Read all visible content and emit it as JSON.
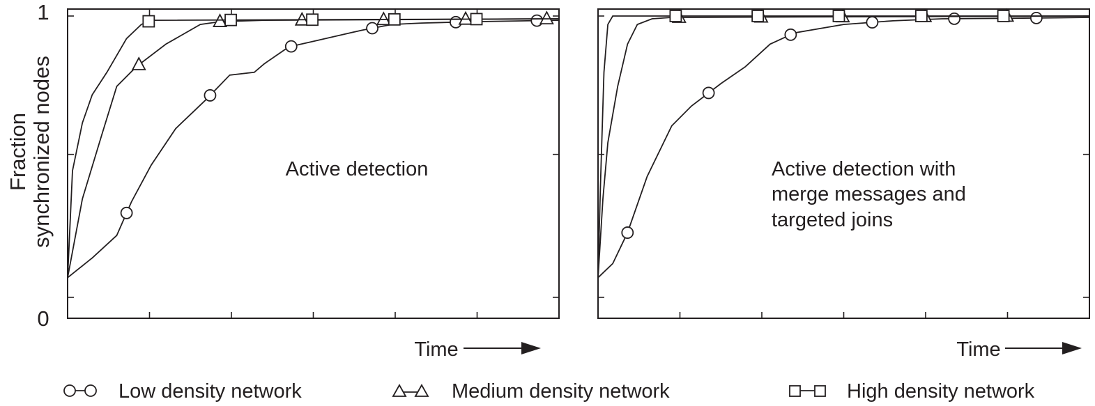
{
  "chart_data": [
    {
      "type": "line",
      "annotation": "Active detection",
      "xlabel": "Time",
      "ylabel": "Fraction synchronized nodes",
      "ylabel_lines": [
        "Fraction",
        "synchronized nodes"
      ],
      "ylim": [
        0,
        1
      ],
      "xlim": [
        0,
        1
      ],
      "y_tick_labels": [
        "0",
        "1"
      ],
      "series": [
        {
          "name": "Low density network",
          "marker": "circle",
          "x": [
            0,
            0.05,
            0.1,
            0.13,
            0.17,
            0.22,
            0.28,
            0.33,
            0.38,
            0.4,
            0.45,
            0.5,
            0.55,
            0.6,
            0.66,
            0.72,
            0.83,
            1
          ],
          "y": [
            0.07,
            0.14,
            0.22,
            0.34,
            0.47,
            0.6,
            0.7,
            0.79,
            0.8,
            0.83,
            0.89,
            0.91,
            0.93,
            0.95,
            0.97,
            0.975,
            0.98,
            0.985
          ],
          "markers_x": [
            0.12,
            0.29,
            0.455,
            0.62,
            0.79,
            0.955
          ]
        },
        {
          "name": "Medium density network",
          "marker": "triangle",
          "x": [
            0,
            0.03,
            0.07,
            0.1,
            0.14,
            0.2,
            0.27,
            0.31,
            0.4,
            1
          ],
          "y": [
            0.07,
            0.35,
            0.58,
            0.75,
            0.82,
            0.9,
            0.97,
            0.98,
            0.985,
            0.99
          ],
          "markers_x": [
            0.145,
            0.31,
            0.477,
            0.643,
            0.81,
            0.975
          ]
        },
        {
          "name": "High density network",
          "marker": "square",
          "x": [
            0,
            0.01,
            0.03,
            0.05,
            0.08,
            0.12,
            0.15,
            0.17,
            1
          ],
          "y": [
            0.07,
            0.45,
            0.62,
            0.72,
            0.8,
            0.92,
            0.97,
            0.985,
            0.99
          ],
          "markers_x": [
            0.165,
            0.332,
            0.498,
            0.665,
            0.832
          ]
        }
      ]
    },
    {
      "type": "line",
      "annotation_lines": [
        "Active detection with",
        "merge messages and",
        "targeted joins"
      ],
      "xlabel": "Time",
      "ylim": [
        0,
        1
      ],
      "xlim": [
        0,
        1
      ],
      "series": [
        {
          "name": "Low density network",
          "marker": "circle",
          "x": [
            0,
            0.03,
            0.06,
            0.1,
            0.15,
            0.19,
            0.25,
            0.3,
            0.35,
            0.4,
            0.5,
            0.6,
            0.7,
            0.85,
            1
          ],
          "y": [
            0.07,
            0.12,
            0.23,
            0.43,
            0.61,
            0.68,
            0.76,
            0.82,
            0.9,
            0.94,
            0.97,
            0.983,
            0.99,
            0.992,
            0.995
          ],
          "markers_x": [
            0.06,
            0.225,
            0.392,
            0.558,
            0.725,
            0.892
          ]
        },
        {
          "name": "Medium density network",
          "marker": "triangle",
          "x": [
            0,
            0.01,
            0.02,
            0.04,
            0.06,
            0.08,
            0.11,
            0.15,
            1
          ],
          "y": [
            0.07,
            0.35,
            0.55,
            0.75,
            0.9,
            0.97,
            0.99,
            0.995,
            1.0
          ],
          "markers_x": [
            0.165,
            0.332,
            0.498,
            0.665,
            0.832
          ]
        },
        {
          "name": "High density network",
          "marker": "square",
          "x": [
            0,
            0.005,
            0.012,
            0.02,
            0.03,
            1
          ],
          "y": [
            0.07,
            0.4,
            0.8,
            0.97,
            1.0,
            1.0
          ],
          "markers_x": [
            0.158,
            0.325,
            0.49,
            0.658,
            0.825
          ]
        }
      ]
    }
  ],
  "legend": [
    {
      "label": "Low density network",
      "marker": "circle"
    },
    {
      "label": "Medium density network",
      "marker": "triangle"
    },
    {
      "label": "High density network",
      "marker": "square"
    }
  ]
}
